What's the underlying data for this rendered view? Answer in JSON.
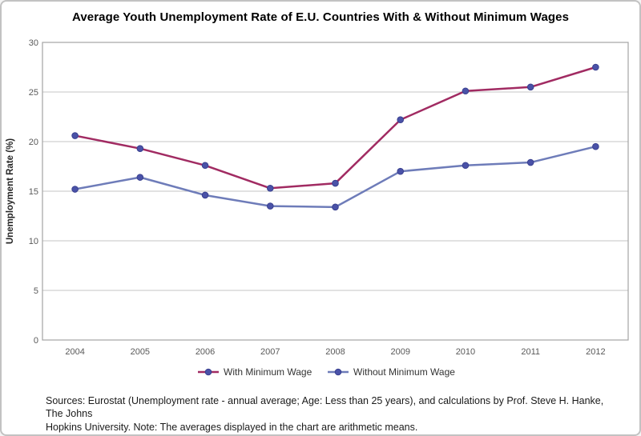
{
  "title": "Average Youth Unemployment Rate of E.U. Countries With & Without Minimum Wages",
  "chart_data": {
    "type": "line",
    "title": "Average Youth Unemployment Rate of E.U. Countries With & Without Minimum Wages",
    "categories": [
      "2004",
      "2005",
      "2006",
      "2007",
      "2008",
      "2009",
      "2010",
      "2011",
      "2012"
    ],
    "series": [
      {
        "name": "With Minimum Wage",
        "color": "#A12B62",
        "values": [
          20.6,
          19.3,
          17.6,
          15.3,
          15.8,
          22.2,
          25.1,
          25.5,
          27.5
        ]
      },
      {
        "name": "Without Minimum Wage",
        "color": "#6E7CB9",
        "values": [
          15.2,
          16.4,
          14.6,
          13.5,
          13.4,
          17.0,
          17.6,
          17.9,
          19.5
        ]
      }
    ],
    "xlabel": "",
    "ylabel": "Unemployment Rate (%)",
    "ylim": [
      0,
      30
    ],
    "ytick_step": 5,
    "grid": "horizontal",
    "legend_position": "bottom",
    "marker": {
      "shape": "circle",
      "fill": "#4A52A8",
      "stroke": "#39408F"
    },
    "colors": {
      "gridline": "#C6C6C6",
      "plot_border": "#A3A3A3",
      "tick_label": "#595959",
      "axis_title": "#262626",
      "legend_text": "#333333"
    }
  },
  "source_note": {
    "lines": [
      "Sources: Eurostat (Unemployment rate - annual average; Age: Less than 25 years), and calculations  by Prof. Steve H. Hanke, The Johns",
      "Hopkins University. Note: The averages displayed in the chart are arithmetic means."
    ]
  }
}
